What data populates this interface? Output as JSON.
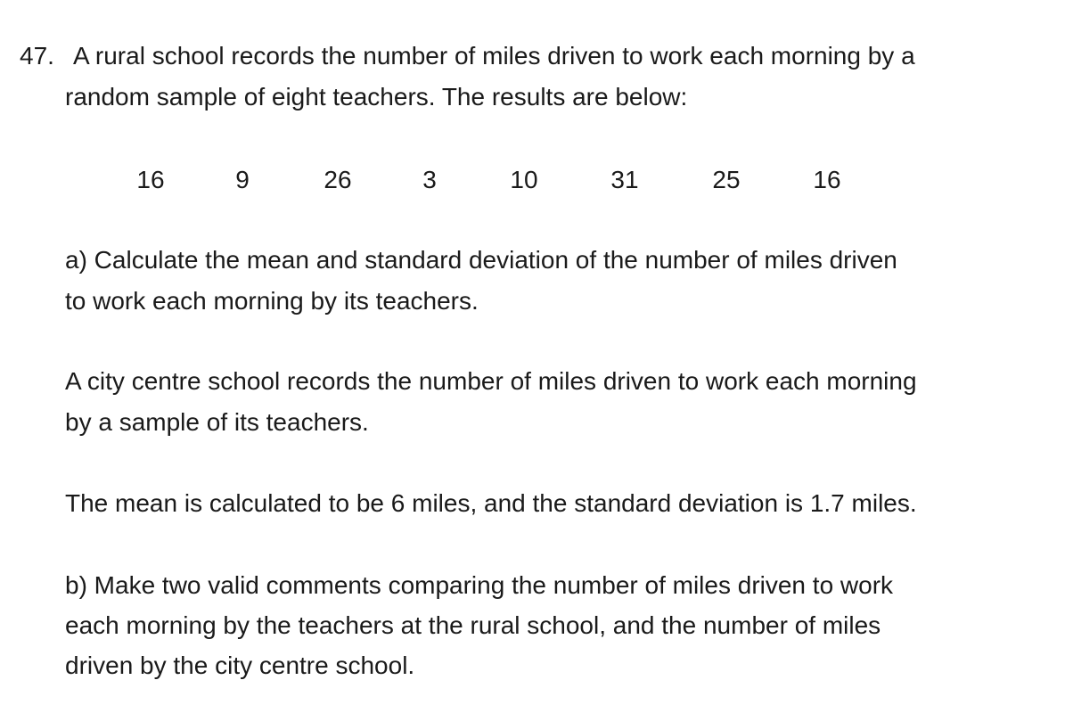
{
  "question": {
    "number": "47.",
    "intro_line1": "A rural school records the number of miles driven to work each morning by a",
    "intro_line2": "random sample of eight teachers. The results are below:",
    "data_values": [
      "16",
      "9",
      "26",
      "3",
      "10",
      "31",
      "25",
      "16"
    ],
    "part_a_line1": "a) Calculate the mean and standard deviation of the number of miles driven",
    "part_a_line2": "to work each morning by its teachers.",
    "city_line1": "A city centre school records the number of miles driven to work each morning",
    "city_line2": "by a sample of its teachers.",
    "stats_line": "The mean is calculated to be 6 miles, and the standard deviation is 1.7 miles.",
    "part_b_line1": "b) Make two valid comments comparing the number of miles driven to work",
    "part_b_line2": "each morning by the teachers at the rural school, and the number of miles",
    "part_b_line3": "driven by the city centre school."
  }
}
